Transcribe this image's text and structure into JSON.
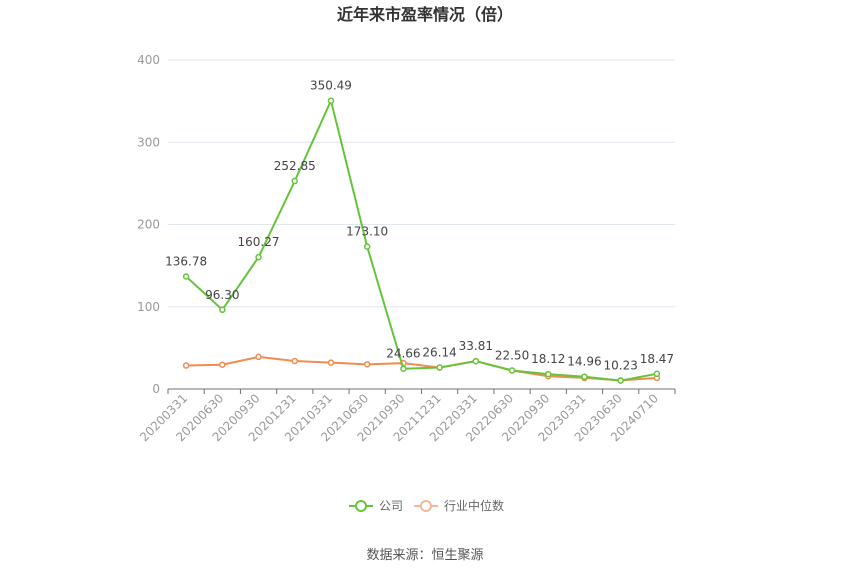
{
  "chart_data": {
    "type": "line",
    "title": "近年来市盈率情况（倍）",
    "categories": [
      "20200331",
      "20200630",
      "20200930",
      "20201231",
      "20210331",
      "20210630",
      "20210930",
      "20211231",
      "20220331",
      "20220630",
      "20220930",
      "20230331",
      "20230630",
      "20240710"
    ],
    "series": [
      {
        "name": "公司",
        "color": "#66c43c",
        "values": [
          136.78,
          96.3,
          160.27,
          252.85,
          350.49,
          173.1,
          24.66,
          26.14,
          33.81,
          22.5,
          18.12,
          14.96,
          10.23,
          18.47
        ],
        "labels": [
          "136.78",
          "96.30",
          "160.27",
          "252.85",
          "350.49",
          "173.10",
          "24.66",
          "26.14",
          "33.81",
          "22.50",
          "18.12",
          "14.96",
          "10.23",
          "18.47"
        ]
      },
      {
        "name": "行业中位数",
        "color": "#f08c50",
        "values": [
          28.5,
          29.5,
          39.0,
          34.0,
          32.0,
          30.0,
          31.5,
          26.0,
          34.0,
          22.5,
          15.5,
          13.5,
          10.5,
          13.5
        ]
      }
    ],
    "ylim": [
      0,
      400
    ],
    "yticks": [
      "0",
      "100",
      "200",
      "300",
      "400"
    ],
    "grid": true,
    "legend_position": "bottom"
  },
  "source": "数据来源：恒生聚源"
}
